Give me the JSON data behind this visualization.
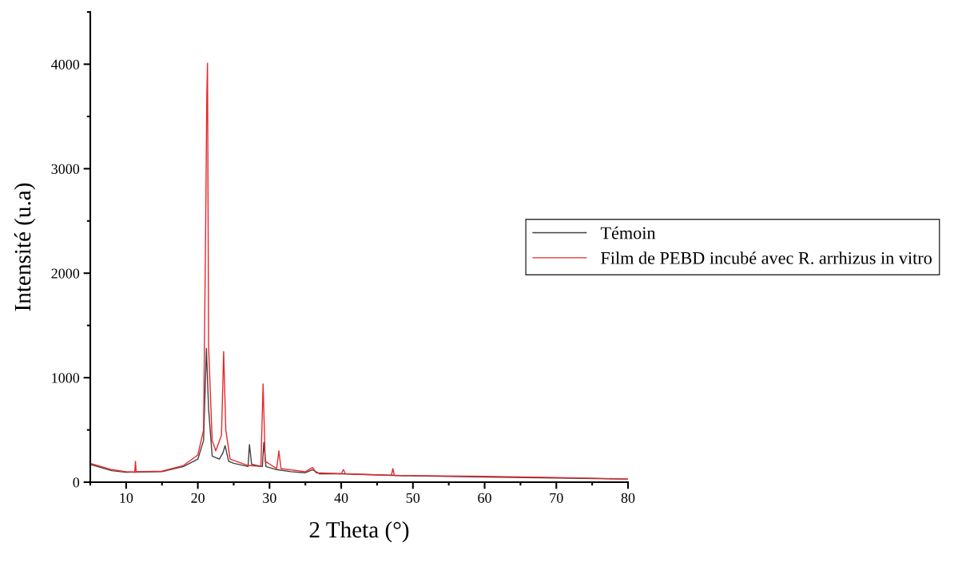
{
  "chart_data": {
    "type": "line",
    "xlabel": "2 Theta (°)",
    "ylabel": "Intensité (u.a)",
    "xlim": [
      5,
      80
    ],
    "xticks": [
      10,
      20,
      30,
      40,
      50,
      60,
      70,
      80
    ],
    "ylim": [
      0,
      4500
    ],
    "yticks": [
      0,
      1000,
      2000,
      3000,
      4000
    ],
    "grid": false,
    "legend": "right",
    "marker": "none",
    "line_style": "solid",
    "series": [
      {
        "name": "Témoin",
        "color": "#404040",
        "x": [
          5,
          8,
          10,
          15,
          18,
          20,
          20.8,
          21.2,
          21.5,
          22,
          23,
          23.5,
          23.8,
          24.3,
          25,
          27,
          27.2,
          27.5,
          29,
          29.2,
          29.5,
          31,
          33,
          35,
          36,
          37,
          40,
          50,
          60,
          70,
          80
        ],
        "values": [
          170,
          110,
          95,
          100,
          150,
          220,
          400,
          1280,
          700,
          250,
          220,
          280,
          350,
          200,
          180,
          150,
          360,
          170,
          150,
          380,
          150,
          120,
          100,
          90,
          120,
          80,
          80,
          60,
          50,
          40,
          30
        ]
      },
      {
        "name": "Film de PEBD incubé avec R. arrhizus in vitro",
        "color": "#e8282c",
        "x": [
          5,
          8,
          10,
          11.2,
          11.3,
          11.4,
          15,
          18,
          20,
          20.8,
          21.1,
          21.25,
          21.35,
          21.5,
          22,
          22.5,
          23.3,
          23.6,
          23.9,
          24.5,
          27,
          28.8,
          29.1,
          29.4,
          31,
          31.3,
          31.6,
          35,
          36,
          36.5,
          40,
          40.3,
          40.6,
          47,
          47.2,
          47.4,
          60,
          70,
          80
        ],
        "values": [
          180,
          120,
          100,
          95,
          200,
          100,
          105,
          160,
          260,
          500,
          2500,
          3700,
          4010,
          1300,
          400,
          300,
          450,
          1250,
          500,
          220,
          160,
          150,
          940,
          200,
          130,
          300,
          130,
          100,
          140,
          90,
          80,
          120,
          80,
          65,
          130,
          65,
          55,
          45,
          30
        ]
      }
    ]
  }
}
